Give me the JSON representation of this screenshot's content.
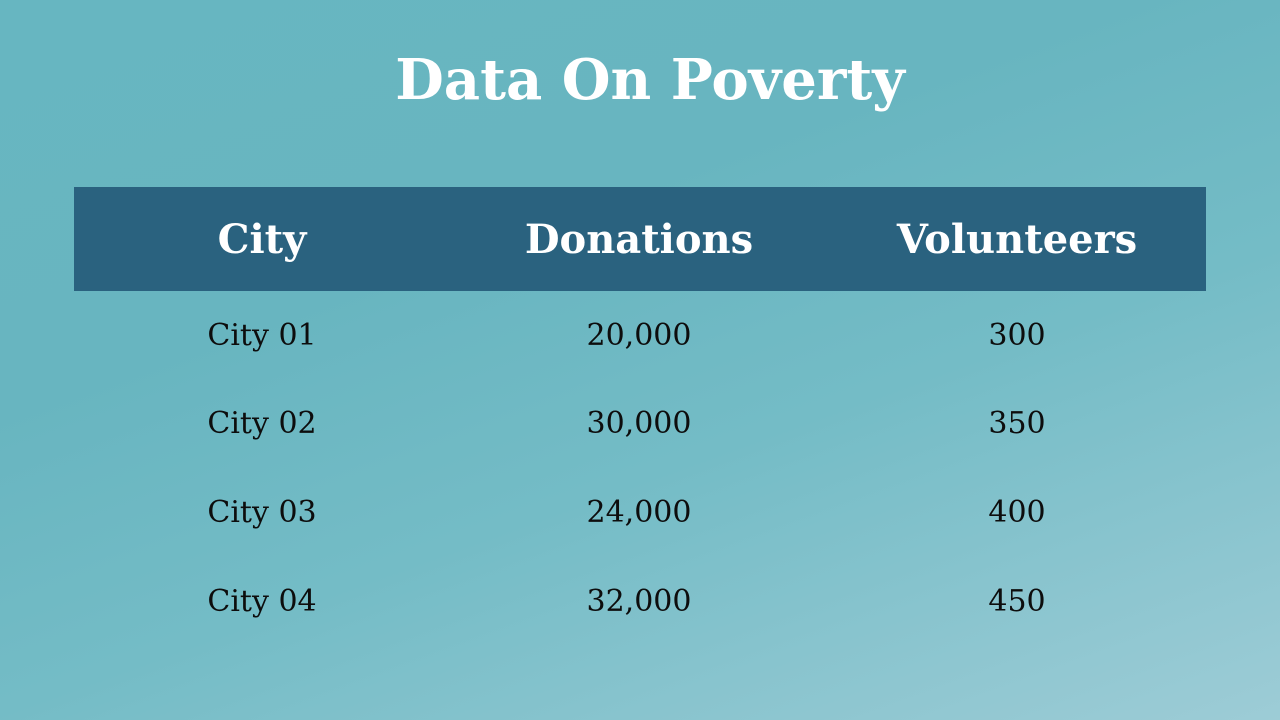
{
  "slide": {
    "title": "Data On Poverty"
  },
  "table": {
    "headers": [
      "City",
      "Donations",
      "Volunteers"
    ],
    "rows": [
      [
        "City 01",
        "20,000",
        "300"
      ],
      [
        "City 02",
        "30,000",
        "350"
      ],
      [
        "City 03",
        "24,000",
        "400"
      ],
      [
        "City 04",
        "32,000",
        "450"
      ]
    ]
  },
  "colors": {
    "background": "#67b6c1",
    "header_band": "#2a627f",
    "title_text": "#ffffff",
    "cell_text": "#0d0d0d"
  }
}
